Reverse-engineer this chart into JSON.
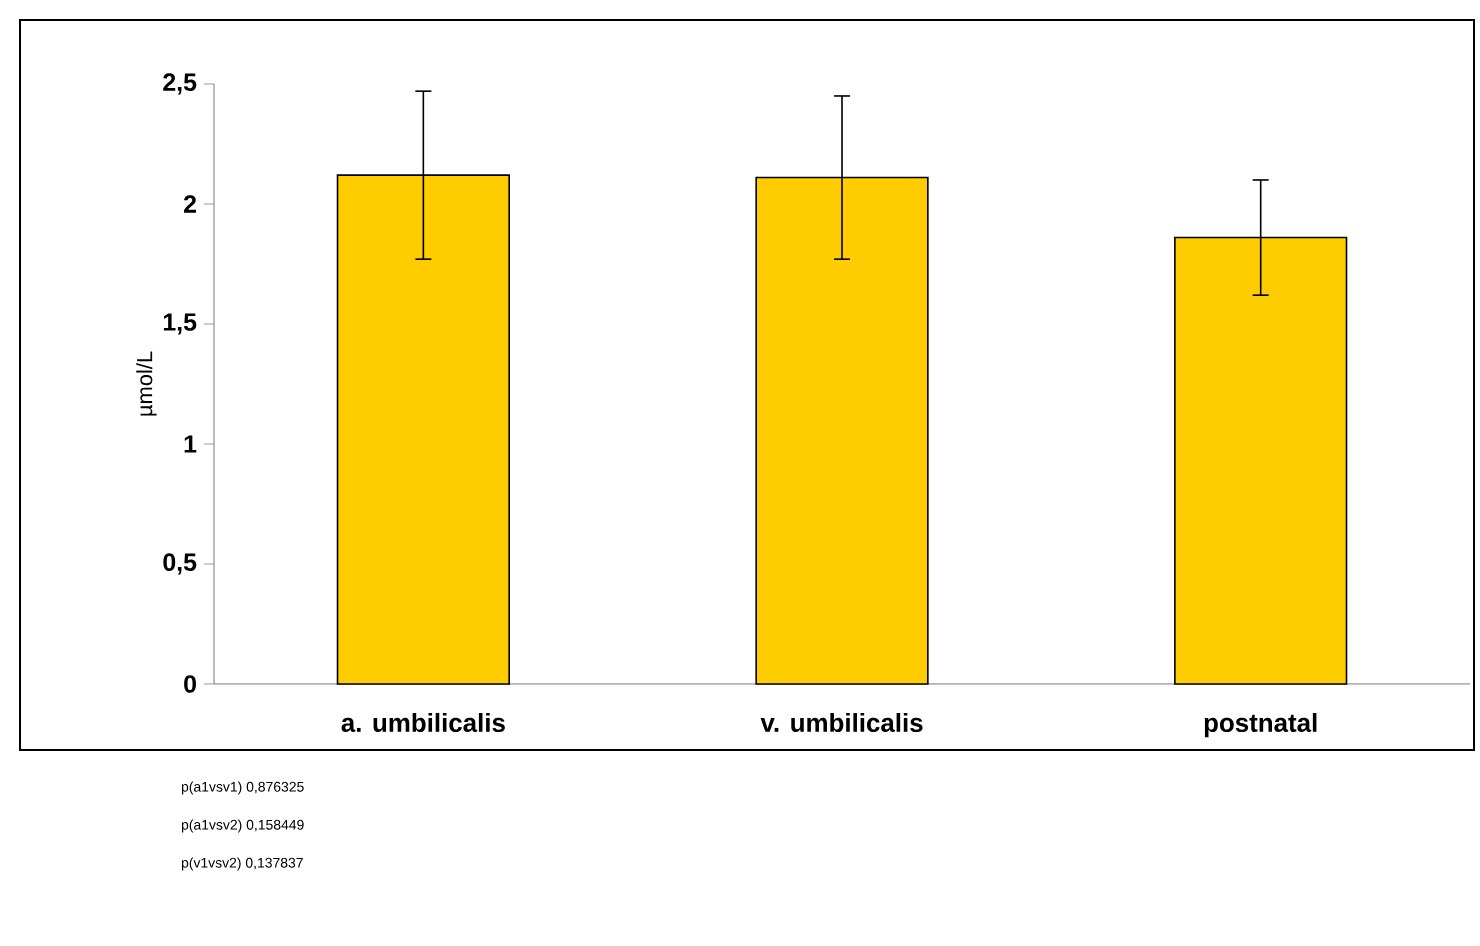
{
  "chart_data": {
    "type": "bar",
    "ylabel": "µmol/L",
    "categories": [
      "a. umbilicalis",
      "v. umbilicalis",
      "postnatal"
    ],
    "values": [
      2.12,
      2.11,
      1.86
    ],
    "errors": [
      0.35,
      0.34,
      0.24
    ],
    "color": "#ffcc00",
    "ylim": [
      0,
      2.5
    ],
    "yticks": [
      0,
      {
        "value": 0.5,
        "label": "0,5"
      },
      1,
      {
        "value": 1.5,
        "label": "1,5"
      },
      2,
      {
        "value": 2.5,
        "label": "2,5"
      }
    ],
    "annotations": [
      "p(a1vsv1)    0,876325",
      "p(a1vsv2)    0,158449",
      "p(v1vsv2)    0,137837"
    ]
  }
}
